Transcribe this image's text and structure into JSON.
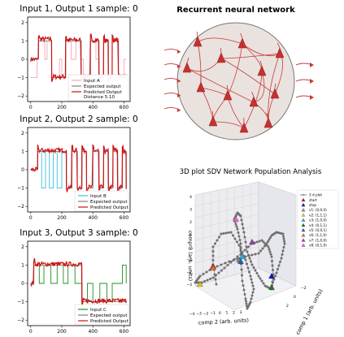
{
  "chart_data": [
    {
      "type": "line",
      "title": "Input 1, Output 1 sample: 0",
      "xlim": [
        -20,
        640
      ],
      "ylim": [
        -2.3,
        2.3
      ],
      "xticks": [
        "0",
        "200",
        "400",
        "600"
      ],
      "yticks": [
        "2",
        "1",
        "0",
        "−1",
        "−2"
      ],
      "legend": [
        {
          "name": "Input A",
          "color": "#f2a7b8"
        },
        {
          "name": "Expected output",
          "color": "#808080"
        },
        {
          "name": "Predicted Output",
          "color": "#cc1111"
        }
      ],
      "legend_extra": "Distance 5.10",
      "legend_position": "bottom-right",
      "input_segments": [
        [
          0,
          -1
        ],
        [
          40,
          0
        ],
        [
          50,
          1
        ],
        [
          90,
          0
        ],
        [
          105,
          1
        ],
        [
          135,
          -1
        ],
        [
          185,
          0
        ],
        [
          200,
          -1
        ],
        [
          225,
          1
        ],
        [
          260,
          0
        ],
        [
          290,
          1
        ],
        [
          325,
          0
        ],
        [
          340,
          -1
        ],
        [
          385,
          1
        ],
        [
          420,
          0
        ],
        [
          440,
          -1
        ],
        [
          470,
          1
        ],
        [
          500,
          -1
        ],
        [
          525,
          1
        ],
        [
          565,
          -1
        ],
        [
          600,
          0
        ],
        [
          615,
          0
        ]
      ],
      "expected_segments": [
        [
          0,
          0
        ],
        [
          50,
          1
        ],
        [
          135,
          -1
        ],
        [
          225,
          1
        ],
        [
          325,
          -1
        ],
        [
          385,
          1
        ],
        [
          440,
          -1
        ],
        [
          470,
          1
        ],
        [
          500,
          -1
        ],
        [
          525,
          1
        ],
        [
          565,
          -1
        ],
        [
          615,
          -1
        ]
      ],
      "predicted_segments": [
        [
          0,
          0
        ],
        [
          50,
          1.1
        ],
        [
          135,
          -0.95
        ],
        [
          225,
          1.05
        ],
        [
          325,
          -0.95
        ],
        [
          385,
          1.05
        ],
        [
          440,
          -0.95
        ],
        [
          470,
          1.0
        ],
        [
          500,
          -0.95
        ],
        [
          525,
          1.05
        ],
        [
          565,
          -0.95
        ],
        [
          615,
          -1.0
        ]
      ]
    },
    {
      "type": "line",
      "title": "Input 2, Output 2 sample: 0",
      "xlim": [
        -20,
        640
      ],
      "ylim": [
        -2.3,
        2.3
      ],
      "xticks": [
        "0",
        "200",
        "400",
        "600"
      ],
      "yticks": [
        "2",
        "1",
        "0",
        "−1",
        "−2"
      ],
      "legend": [
        {
          "name": "Input B",
          "color": "#3cc0dd"
        },
        {
          "name": "Expected output",
          "color": "#808080"
        },
        {
          "name": "Predicted Output",
          "color": "#cc1111"
        }
      ],
      "legend_extra": "",
      "legend_position": "bottom-right",
      "input_segments": [
        [
          0,
          0
        ],
        [
          45,
          1
        ],
        [
          70,
          -1
        ],
        [
          95,
          1
        ],
        [
          120,
          -1
        ],
        [
          145,
          1
        ],
        [
          170,
          -1
        ],
        [
          200,
          1
        ],
        [
          230,
          -1
        ],
        [
          265,
          1
        ],
        [
          300,
          -1
        ],
        [
          330,
          1
        ],
        [
          360,
          -1
        ],
        [
          400,
          1
        ],
        [
          440,
          -1
        ],
        [
          470,
          1
        ],
        [
          500,
          -1
        ],
        [
          530,
          1
        ],
        [
          560,
          -1
        ],
        [
          590,
          1
        ],
        [
          615,
          -1
        ]
      ],
      "expected_segments": [
        [
          0,
          0
        ],
        [
          45,
          1
        ],
        [
          230,
          -1
        ],
        [
          265,
          1
        ],
        [
          300,
          -1
        ],
        [
          330,
          1
        ],
        [
          360,
          -1
        ],
        [
          400,
          1
        ],
        [
          440,
          -1
        ],
        [
          470,
          1
        ],
        [
          500,
          -1
        ],
        [
          530,
          1
        ],
        [
          560,
          -1
        ],
        [
          590,
          1
        ],
        [
          615,
          -1
        ]
      ],
      "predicted_segments": [
        [
          0,
          0
        ],
        [
          45,
          1.05
        ],
        [
          230,
          -0.95
        ],
        [
          265,
          1.05
        ],
        [
          300,
          -0.95
        ],
        [
          330,
          1.05
        ],
        [
          360,
          -0.95
        ],
        [
          400,
          1.05
        ],
        [
          440,
          -0.95
        ],
        [
          470,
          1.0
        ],
        [
          500,
          -0.95
        ],
        [
          530,
          1.05
        ],
        [
          560,
          -0.95
        ],
        [
          590,
          1.0
        ],
        [
          615,
          -1.05
        ]
      ]
    },
    {
      "type": "line",
      "title": "Input 3, Output 3 sample: 0",
      "xlim": [
        -20,
        640
      ],
      "ylim": [
        -2.3,
        2.3
      ],
      "xticks": [
        "0",
        "200",
        "400",
        "600"
      ],
      "yticks": [
        "2",
        "1",
        "0",
        "−1",
        "−2"
      ],
      "legend": [
        {
          "name": "Input C",
          "color": "#1f8f1f"
        },
        {
          "name": "Expected output",
          "color": "#808080"
        },
        {
          "name": "Predicted Output",
          "color": "#cc1111"
        }
      ],
      "legend_extra": "",
      "legend_position": "bottom-right",
      "input_segments": [
        [
          0,
          0
        ],
        [
          20,
          1
        ],
        [
          55,
          0
        ],
        [
          85,
          1
        ],
        [
          130,
          0
        ],
        [
          170,
          1
        ],
        [
          210,
          0
        ],
        [
          240,
          1
        ],
        [
          285,
          0
        ],
        [
          330,
          -1
        ],
        [
          365,
          0
        ],
        [
          400,
          -1
        ],
        [
          445,
          0
        ],
        [
          490,
          -1
        ],
        [
          525,
          0
        ],
        [
          590,
          1
        ],
        [
          615,
          0
        ]
      ],
      "expected_segments": [
        [
          0,
          0
        ],
        [
          20,
          1
        ],
        [
          330,
          -1
        ],
        [
          615,
          -1
        ]
      ],
      "predicted_segments": [
        [
          0,
          0
        ],
        [
          20,
          1.05
        ],
        [
          330,
          -0.95
        ],
        [
          615,
          -0.95
        ]
      ]
    },
    {
      "type": "diagram",
      "title": "Recurrent neural network"
    },
    {
      "type": "scatter",
      "title": "3D plot SDV Network Population Analysis",
      "xlabel": "comp 2 (arb. units)",
      "ylabel": "comp 3 (arb. units)",
      "zlabel": "comp 1 (arb. units)",
      "xticks": [
        "−4",
        "−3",
        "−2",
        "−1",
        "0",
        "1",
        "2",
        "3"
      ],
      "yticks": [
        "−3",
        "−2",
        "−1",
        "0",
        "1",
        "2",
        "3",
        "4"
      ],
      "zticks": [
        "−2",
        "0",
        "2"
      ],
      "legend_position": "top-right",
      "legend": [
        {
          "name": "3 d plot",
          "color": "#808080",
          "marker": "line"
        },
        {
          "name": "start",
          "color": "#cc1111",
          "marker": "triangle"
        },
        {
          "name": "stop",
          "color": "#1010cc",
          "marker": "triangle"
        },
        {
          "name": "v1: (0,0,0)",
          "color": "#888888",
          "marker": "triangle"
        },
        {
          "name": "v2: (1,1,1)",
          "color": "#e8c020",
          "marker": "triangle"
        },
        {
          "name": "v3: (1,0,0)",
          "color": "#20b0e0",
          "marker": "triangle"
        },
        {
          "name": "v4: (0,1,1)",
          "color": "#1a7a1a",
          "marker": "triangle"
        },
        {
          "name": "v5: (0,0,1)",
          "color": "#2060b0",
          "marker": "triangle"
        },
        {
          "name": "v6: (1,1,0)",
          "color": "#e07030",
          "marker": "triangle"
        },
        {
          "name": "v7: (1,0,0)",
          "color": "#9040b0",
          "marker": "triangle"
        },
        {
          "name": "v8: (0,1,0)",
          "color": "#f060c0",
          "marker": "triangle"
        }
      ]
    }
  ]
}
